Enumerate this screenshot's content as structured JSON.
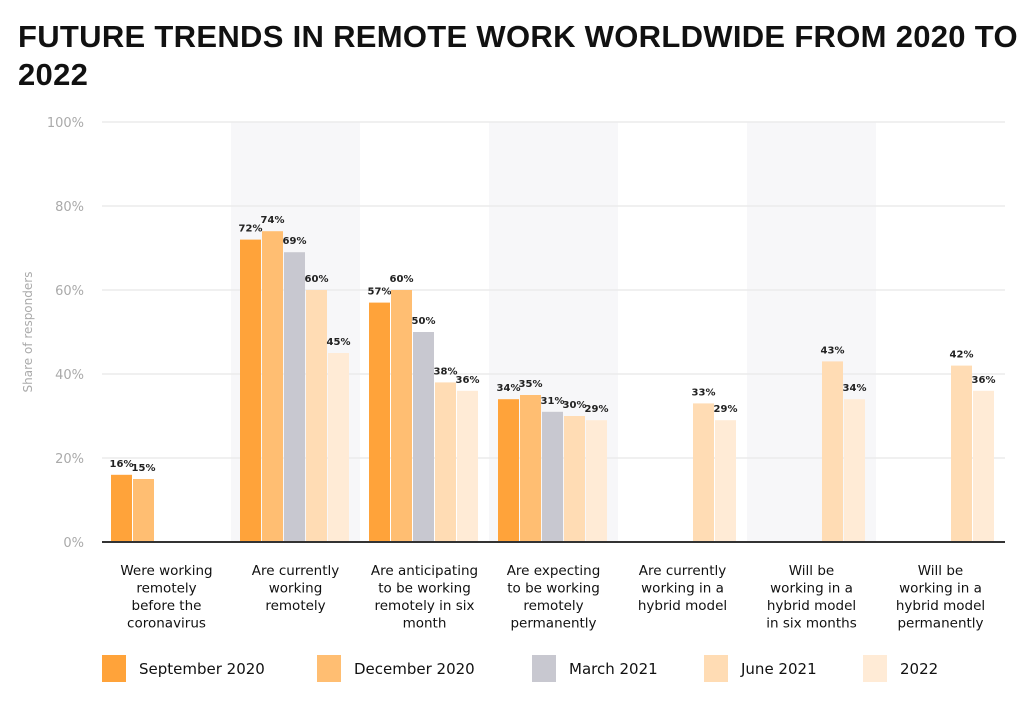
{
  "chart_data": {
    "type": "bar",
    "title": "FUTURE TRENDS IN REMOTE WORK WORLDWIDE FROM 2020 TO 2022",
    "ylabel": "Share of responders",
    "xlabel": "",
    "ylim": [
      0,
      100
    ],
    "yticks": [
      "0%",
      "20%",
      "40%",
      "60%",
      "80%",
      "100%"
    ],
    "grid": true,
    "legend_position": "bottom",
    "categories": [
      "Were working remotely before the coronavirus",
      "Are currently working remotely",
      "Are anticipating to be working remotely in six month",
      "Are expecting to be working remotely permanently",
      "Are currently working in a hybrid model",
      "Will be working in a hybrid model in six months",
      "Will be working in a hybrid model permanently"
    ],
    "category_lines": [
      [
        "Were working",
        "remotely",
        "before the",
        "coronavirus"
      ],
      [
        "Are currently",
        "working",
        "remotely"
      ],
      [
        "Are anticipating",
        "to be working",
        "remotely in six",
        "month"
      ],
      [
        "Are expecting",
        "to be working",
        "remotely",
        "permanently"
      ],
      [
        "Are currently",
        "working in a",
        "hybrid model"
      ],
      [
        "Will be",
        "working in a",
        "hybrid model",
        "in six months"
      ],
      [
        "Will be",
        "working in a",
        "hybrid model",
        "permanently"
      ]
    ],
    "series": [
      {
        "name": "September 2020",
        "color": "#ffa33a",
        "values": [
          16,
          72,
          57,
          34,
          null,
          null,
          null
        ]
      },
      {
        "name": "December 2020",
        "color": "#ffbe72",
        "values": [
          15,
          74,
          60,
          35,
          null,
          null,
          null
        ]
      },
      {
        "name": "March 2021",
        "color": "#c8c8d0",
        "values": [
          null,
          69,
          50,
          31,
          null,
          null,
          null
        ]
      },
      {
        "name": "June 2021",
        "color": "#ffdcb4",
        "values": [
          null,
          60,
          38,
          30,
          33,
          43,
          42
        ]
      },
      {
        "name": "2022",
        "color": "#ffebd6",
        "values": [
          null,
          45,
          36,
          29,
          29,
          34,
          36
        ]
      }
    ]
  }
}
